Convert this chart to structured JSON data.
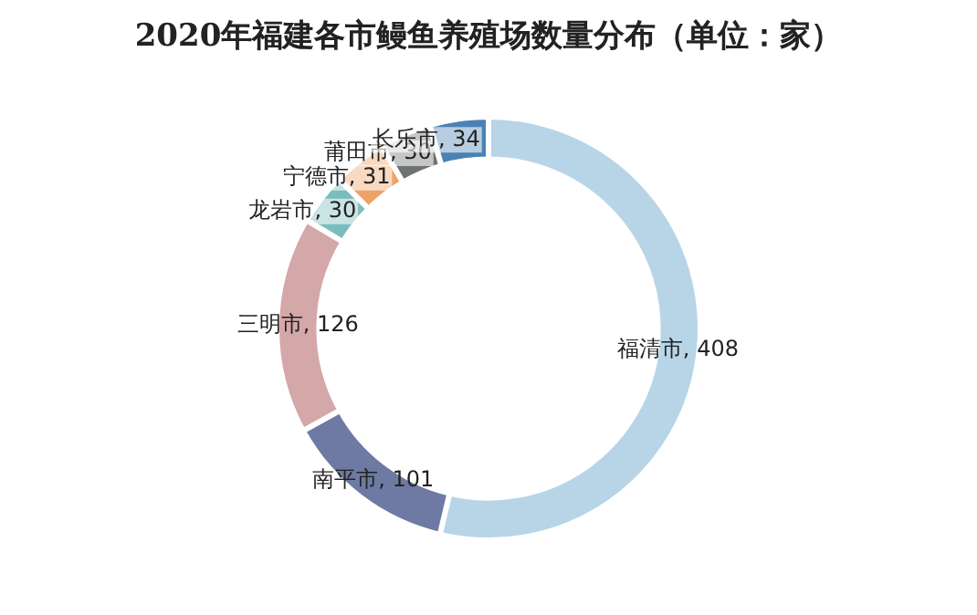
{
  "chart_data": {
    "type": "donut",
    "title": "2020年福建各市鳗鱼养殖场数量分布（单位：家）",
    "categories": [
      "福清市",
      "南平市",
      "三明市",
      "龙岩市",
      "宁德市",
      "莆田市",
      "长乐市"
    ],
    "values": [
      408,
      101,
      126,
      30,
      31,
      30,
      34
    ],
    "value_labels": [
      ", 408",
      ", 101",
      ", 126",
      ", 30",
      ", 31",
      ", 30",
      ", 34"
    ],
    "colors": [
      "#b7d5e7",
      "#6e7aa3",
      "#d4a7a9",
      "#7cbcbc",
      "#eea366",
      "#6f7374",
      "#4b82b3"
    ],
    "legend": false
  }
}
